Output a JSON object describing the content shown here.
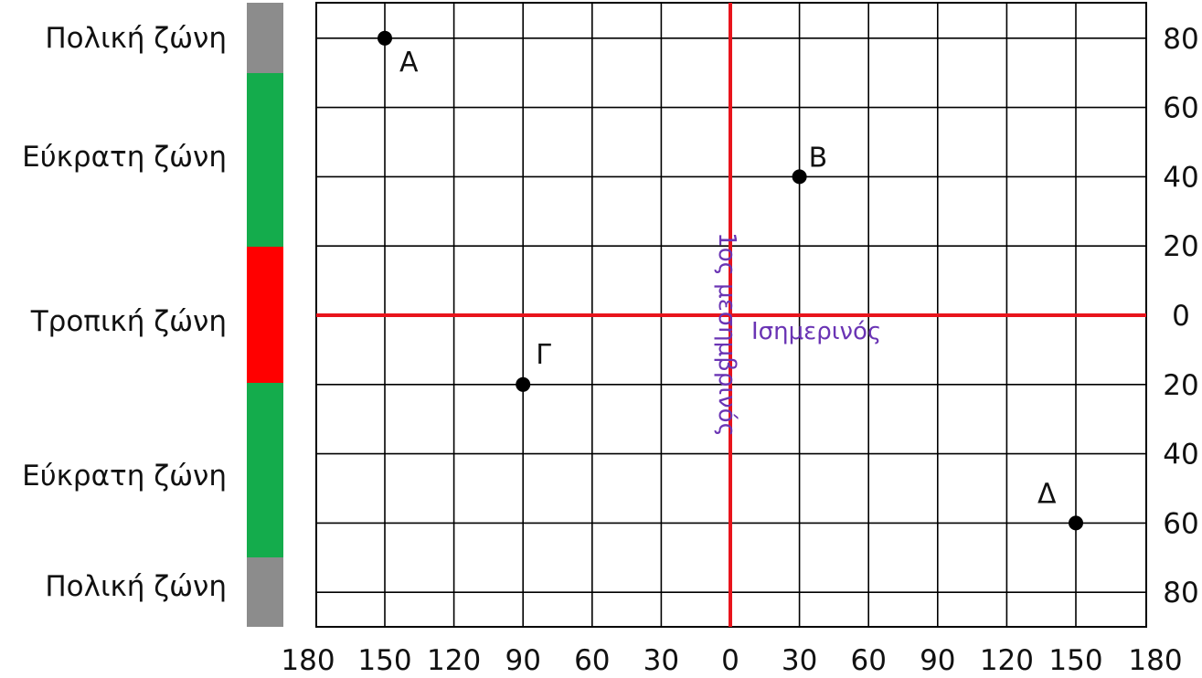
{
  "zones": [
    {
      "label": "Πολική ζώνη",
      "color": "#8c8c8c",
      "from_lat": 90,
      "to_lat": 66.5
    },
    {
      "label": "Εύκρατη ζώνη",
      "color": "#14ac4c",
      "from_lat": 66.5,
      "to_lat": 23.5
    },
    {
      "label": "Τροπική ζώνη",
      "color": "#ff0000",
      "from_lat": 23.5,
      "to_lat": -23.5
    },
    {
      "label": "Εύκρατη ζώνη",
      "color": "#14ac4c",
      "from_lat": -23.5,
      "to_lat": -66.5
    },
    {
      "label": "Πολική ζώνη",
      "color": "#8c8c8c",
      "from_lat": -66.5,
      "to_lat": -90
    }
  ],
  "equator_label": "Ισημερινός",
  "meridian_label": "1ος μεσημβρινός",
  "axis_color": "#e8141c",
  "axis_label_color": "#6a34b4",
  "grid_color": "#000000",
  "x_tick_labels": [
    "180",
    "150",
    "120",
    "90",
    "60",
    "30",
    "0",
    "30",
    "60",
    "90",
    "120",
    "150",
    "180"
  ],
  "y_tick_labels": [
    "80",
    "60",
    "40",
    "20",
    "0",
    "20",
    "40",
    "60",
    "80"
  ],
  "lon_range": [
    -180,
    180
  ],
  "lat_range": [
    -90,
    90
  ],
  "points": [
    {
      "label": "Α",
      "lon": -150,
      "lat": 80
    },
    {
      "label": "Β",
      "lon": 30,
      "lat": 40
    },
    {
      "label": "Γ",
      "lon": -90,
      "lat": -20
    },
    {
      "label": "Δ",
      "lon": 150,
      "lat": -60
    }
  ]
}
